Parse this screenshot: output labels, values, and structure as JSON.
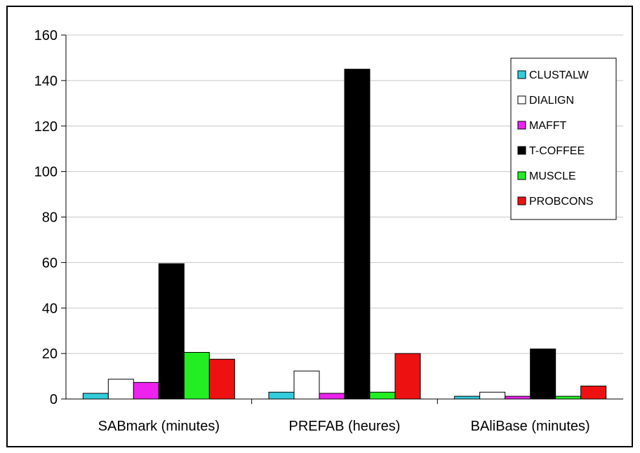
{
  "chart_data": {
    "type": "bar",
    "title": "",
    "xlabel": "",
    "ylabel": "",
    "categories": [
      "SABmark (minutes)",
      "PREFAB (heures)",
      "BAliBase (minutes)"
    ],
    "ylim": [
      0,
      160
    ],
    "yticks": [
      0,
      20,
      40,
      60,
      80,
      100,
      120,
      140,
      160
    ],
    "grid": true,
    "legend_position": "top-right",
    "series": [
      {
        "name": "CLUSTALW",
        "color": "#33ccdd",
        "values": [
          2.5,
          3,
          1.2
        ]
      },
      {
        "name": "DIALIGN",
        "color": "#ffffff",
        "values": [
          8.7,
          12.3,
          3
        ]
      },
      {
        "name": "MAFFT",
        "color": "#ee22ee",
        "values": [
          7.3,
          2.5,
          1.2
        ]
      },
      {
        "name": "T-COFFEE",
        "color": "#000000",
        "values": [
          59.5,
          145,
          22
        ]
      },
      {
        "name": "MUSCLE",
        "color": "#22ee22",
        "values": [
          20.5,
          3,
          1.2
        ]
      },
      {
        "name": "PROBCONS",
        "color": "#ee1111",
        "values": [
          17.5,
          20,
          5.7
        ]
      }
    ]
  }
}
